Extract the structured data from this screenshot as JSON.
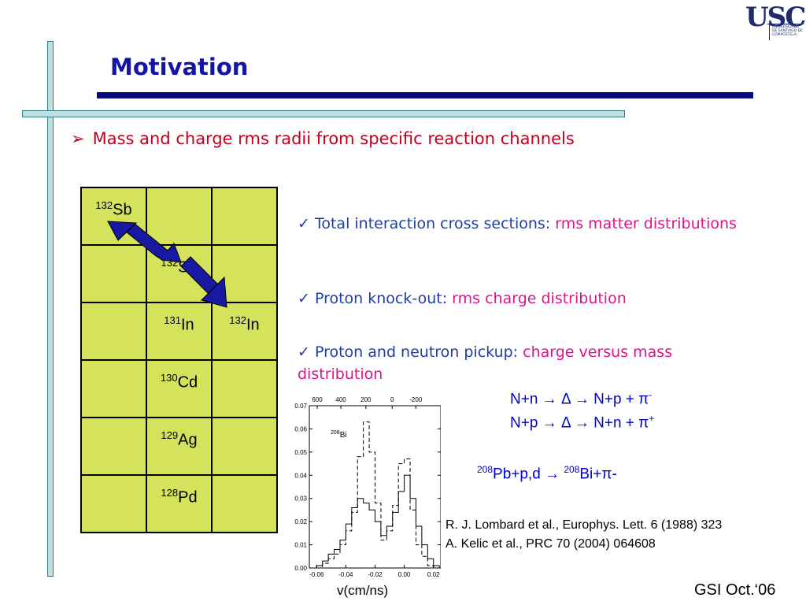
{
  "title": "Motivation",
  "logo": {
    "name": "USC",
    "subtitle": "UNIVERSIDADE DE SANTIAGO DE COMPOSTELA"
  },
  "main_bullet": "Mass and charge rms radii from specific reaction channels",
  "chart_grid": {
    "rows": [
      [
        {
          "mass": "132",
          "el": "Sb"
        },
        {
          "mass": "",
          "el": ""
        },
        {
          "mass": "",
          "el": ""
        }
      ],
      [
        {
          "mass": "",
          "el": ""
        },
        {
          "mass": "132",
          "el": "Sn"
        },
        {
          "mass": "",
          "el": ""
        }
      ],
      [
        {
          "mass": "",
          "el": ""
        },
        {
          "mass": "131",
          "el": "In"
        },
        {
          "mass": "132",
          "el": "In"
        }
      ],
      [
        {
          "mass": "",
          "el": ""
        },
        {
          "mass": "130",
          "el": "Cd"
        },
        {
          "mass": "",
          "el": ""
        }
      ],
      [
        {
          "mass": "",
          "el": ""
        },
        {
          "mass": "129",
          "el": "Ag"
        },
        {
          "mass": "",
          "el": ""
        }
      ],
      [
        {
          "mass": "",
          "el": ""
        },
        {
          "mass": "128",
          "el": "Pd"
        },
        {
          "mass": "",
          "el": ""
        }
      ]
    ]
  },
  "checks": [
    {
      "prefix": "Total interaction cross sections: ",
      "highlight": "rms matter distributions"
    },
    {
      "prefix": "Proton knock-out: ",
      "highlight": "rms charge distribution"
    },
    {
      "prefix": "Proton and neutron pickup: ",
      "highlight": "charge versus mass distribution"
    }
  ],
  "reactions": {
    "r1": "N+n → Δ → N+p + π",
    "r1_sup": "-",
    "r2": "N+p → Δ → N+n + π",
    "r2_sup": "+",
    "r3_pb_mass": "208",
    "r3_mid": "Pb+p,d → ",
    "r3_bi_mass": "208",
    "r3_end": "Bi+π-"
  },
  "references": [
    "R. J. Lombard et al., Europhys. Lett. 6 (1988) 323",
    "A. Kelic et al., PRC 70 (2004) 064608"
  ],
  "footer": "GSI Oct.‘06",
  "chart_data": {
    "type": "line",
    "xlabel": "v(cm/ns)",
    "x_ticks_bottom": [
      "-0.06",
      "-0.04",
      "-0.02",
      "0.00",
      "0.02"
    ],
    "x_ticks_top": [
      "600",
      "400",
      "200",
      "0",
      "-200"
    ],
    "y_ticks": [
      "0.00",
      "0.01",
      "0.02",
      "0.03",
      "0.04",
      "0.05",
      "0.06",
      "0.07"
    ],
    "xlim": [
      -0.065,
      0.025
    ],
    "ylim": [
      0,
      0.07
    ],
    "label_mass": "208",
    "label_el": "Bi",
    "series": [
      {
        "style": "solid",
        "bins": [
          -0.064,
          -0.06,
          -0.056,
          -0.052,
          -0.048,
          -0.044,
          -0.04,
          -0.036,
          -0.032,
          -0.028,
          -0.024,
          -0.02,
          -0.016,
          -0.012,
          -0.008,
          -0.004,
          0.0,
          0.004,
          0.008,
          0.012,
          0.016,
          0.02
        ],
        "values": [
          0.0,
          0.001,
          0.003,
          0.006,
          0.008,
          0.012,
          0.019,
          0.026,
          0.03,
          0.028,
          0.025,
          0.02,
          0.014,
          0.018,
          0.024,
          0.033,
          0.04,
          0.03,
          0.018,
          0.01,
          0.004,
          0.001
        ]
      },
      {
        "style": "dashed",
        "bins": [
          -0.064,
          -0.06,
          -0.056,
          -0.052,
          -0.048,
          -0.044,
          -0.04,
          -0.036,
          -0.032,
          -0.028,
          -0.024,
          -0.02,
          -0.016,
          -0.012,
          -0.008,
          -0.004,
          0.0,
          0.004,
          0.008,
          0.012,
          0.016,
          0.02
        ],
        "values": [
          0.0,
          0.0,
          0.002,
          0.004,
          0.006,
          0.01,
          0.016,
          0.024,
          0.048,
          0.063,
          0.05,
          0.028,
          0.012,
          0.016,
          0.027,
          0.045,
          0.047,
          0.025,
          0.01,
          0.005,
          0.001,
          0.0
        ]
      }
    ]
  }
}
